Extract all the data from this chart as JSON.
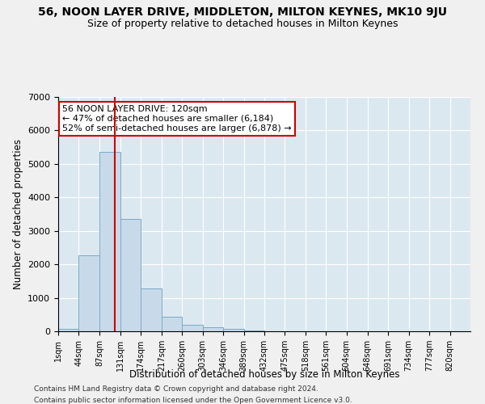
{
  "title": "56, NOON LAYER DRIVE, MIDDLETON, MILTON KEYNES, MK10 9JU",
  "subtitle": "Size of property relative to detached houses in Milton Keynes",
  "xlabel": "Distribution of detached houses by size in Milton Keynes",
  "ylabel": "Number of detached properties",
  "bar_color": "#c8daea",
  "bar_edge_color": "#7aaac8",
  "vline_color": "#cc0000",
  "vline_x": 120,
  "annotation_text": "56 NOON LAYER DRIVE: 120sqm\n← 47% of detached houses are smaller (6,184)\n52% of semi-detached houses are larger (6,878) →",
  "annotation_box_color": "#ffffff",
  "annotation_box_edge": "#cc0000",
  "footer1": "Contains HM Land Registry data © Crown copyright and database right 2024.",
  "footer2": "Contains public sector information licensed under the Open Government Licence v3.0.",
  "bin_edges": [
    1,
    44,
    87,
    131,
    174,
    217,
    260,
    303,
    346,
    389,
    432,
    475,
    518,
    561,
    604,
    648,
    691,
    734,
    777,
    820,
    863
  ],
  "bin_counts": [
    75,
    2280,
    5350,
    3350,
    1280,
    430,
    200,
    130,
    75,
    25,
    10,
    5,
    3,
    2,
    1,
    1,
    0,
    0,
    0,
    0
  ],
  "ylim": [
    0,
    7000
  ],
  "plot_bg_color": "#dce8f0",
  "fig_bg_color": "#f0f0f0",
  "title_fontsize": 10,
  "subtitle_fontsize": 9,
  "tick_label_fontsize": 7,
  "annotation_fontsize": 8
}
